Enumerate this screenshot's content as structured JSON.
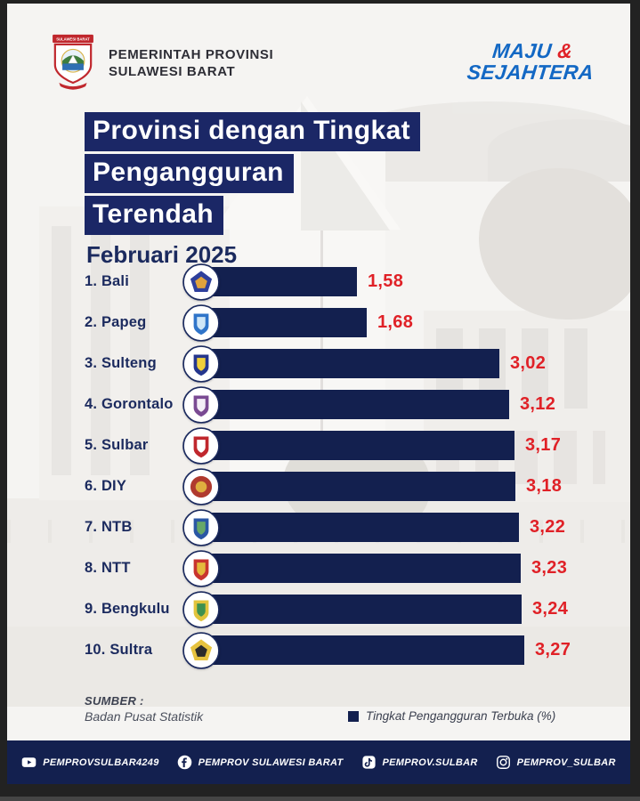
{
  "page": {
    "bg": "#f5f4f2",
    "navy": "#13204f",
    "red": "#e02127",
    "blue": "#1368c4"
  },
  "header": {
    "logo_banner": "SULAWESI BARAT",
    "org_name_line1": "PEMERINTAH PROVINSI",
    "org_name_line2": "SULAWESI BARAT",
    "motto_word1": "MAJU",
    "motto_amp": "&",
    "motto_word2": "SEJAHTERA"
  },
  "title": {
    "line1": "Provinsi dengan Tingkat",
    "line2": "Pengangguran",
    "line3": "Terendah",
    "subtitle": "Februari 2025"
  },
  "chart_data": {
    "type": "bar",
    "orientation": "horizontal",
    "title": "Provinsi dengan Tingkat Pengangguran Terendah",
    "period": "Februari 2025",
    "categories": [
      "Bali",
      "Papeg",
      "Sulteng",
      "Gorontalo",
      "Sulbar",
      "DIY",
      "NTB",
      "NTT",
      "Bengkulu",
      "Sultra"
    ],
    "rank_labels": [
      "1. Bali",
      "2. Papeg",
      "3. Sulteng",
      "4. Gorontalo",
      "5. Sulbar",
      "6. DIY",
      "7. NTB",
      "8. NTT",
      "9. Bengkulu",
      "10. Sultra"
    ],
    "values": [
      1.58,
      1.68,
      3.02,
      3.12,
      3.17,
      3.18,
      3.22,
      3.23,
      3.24,
      3.27
    ],
    "value_labels": [
      "1,58",
      "1,68",
      "3,02",
      "3,12",
      "3,17",
      "3,18",
      "3,22",
      "3,23",
      "3,24",
      "3,27"
    ],
    "xlim": [
      0,
      3.6
    ],
    "bar_color": "#13204f",
    "value_color": "#e02127",
    "legend": "Tingkat Pengangguran Terbuka (%)",
    "legend_position": "bottom-right",
    "source_label": "SUMBER :",
    "source": "Badan Pusat Statistik",
    "emblems": [
      {
        "name": "bali-emblem",
        "shape": "pentagon",
        "fill": "#2e3f9c",
        "accent": "#e0a23c"
      },
      {
        "name": "papua-pegunungan-emblem",
        "shape": "shield",
        "fill": "#2f74c9",
        "accent": "#cfe6f7"
      },
      {
        "name": "sulteng-emblem",
        "shape": "shield",
        "fill": "#24368d",
        "accent": "#efcf3a"
      },
      {
        "name": "gorontalo-emblem",
        "shape": "shield",
        "fill": "#7a4a93",
        "accent": "#f4eef7"
      },
      {
        "name": "sulbar-emblem",
        "shape": "shield",
        "fill": "#c0272d",
        "accent": "#ffffff"
      },
      {
        "name": "diy-emblem",
        "shape": "circle",
        "fill": "#b03a2e",
        "accent": "#dfae3f"
      },
      {
        "name": "ntb-emblem",
        "shape": "shield",
        "fill": "#2a57a5",
        "accent": "#67a868"
      },
      {
        "name": "ntt-emblem",
        "shape": "shield",
        "fill": "#c8342e",
        "accent": "#e4b93c"
      },
      {
        "name": "bengkulu-emblem",
        "shape": "shield",
        "fill": "#e2c43c",
        "accent": "#3e9150"
      },
      {
        "name": "sultra-emblem",
        "shape": "pentagon",
        "fill": "#e7c33f",
        "accent": "#2b2b2b"
      }
    ]
  },
  "footer": {
    "items": [
      {
        "icon": "youtube-icon",
        "handle": "PEMPROVSULBAR4249"
      },
      {
        "icon": "facebook-icon",
        "handle": "PEMPROV SULAWESI BARAT"
      },
      {
        "icon": "tiktok-icon",
        "handle": "PEMPROV.SULBAR"
      },
      {
        "icon": "instagram-icon",
        "handle": "PEMPROV_SULBAR"
      }
    ]
  }
}
